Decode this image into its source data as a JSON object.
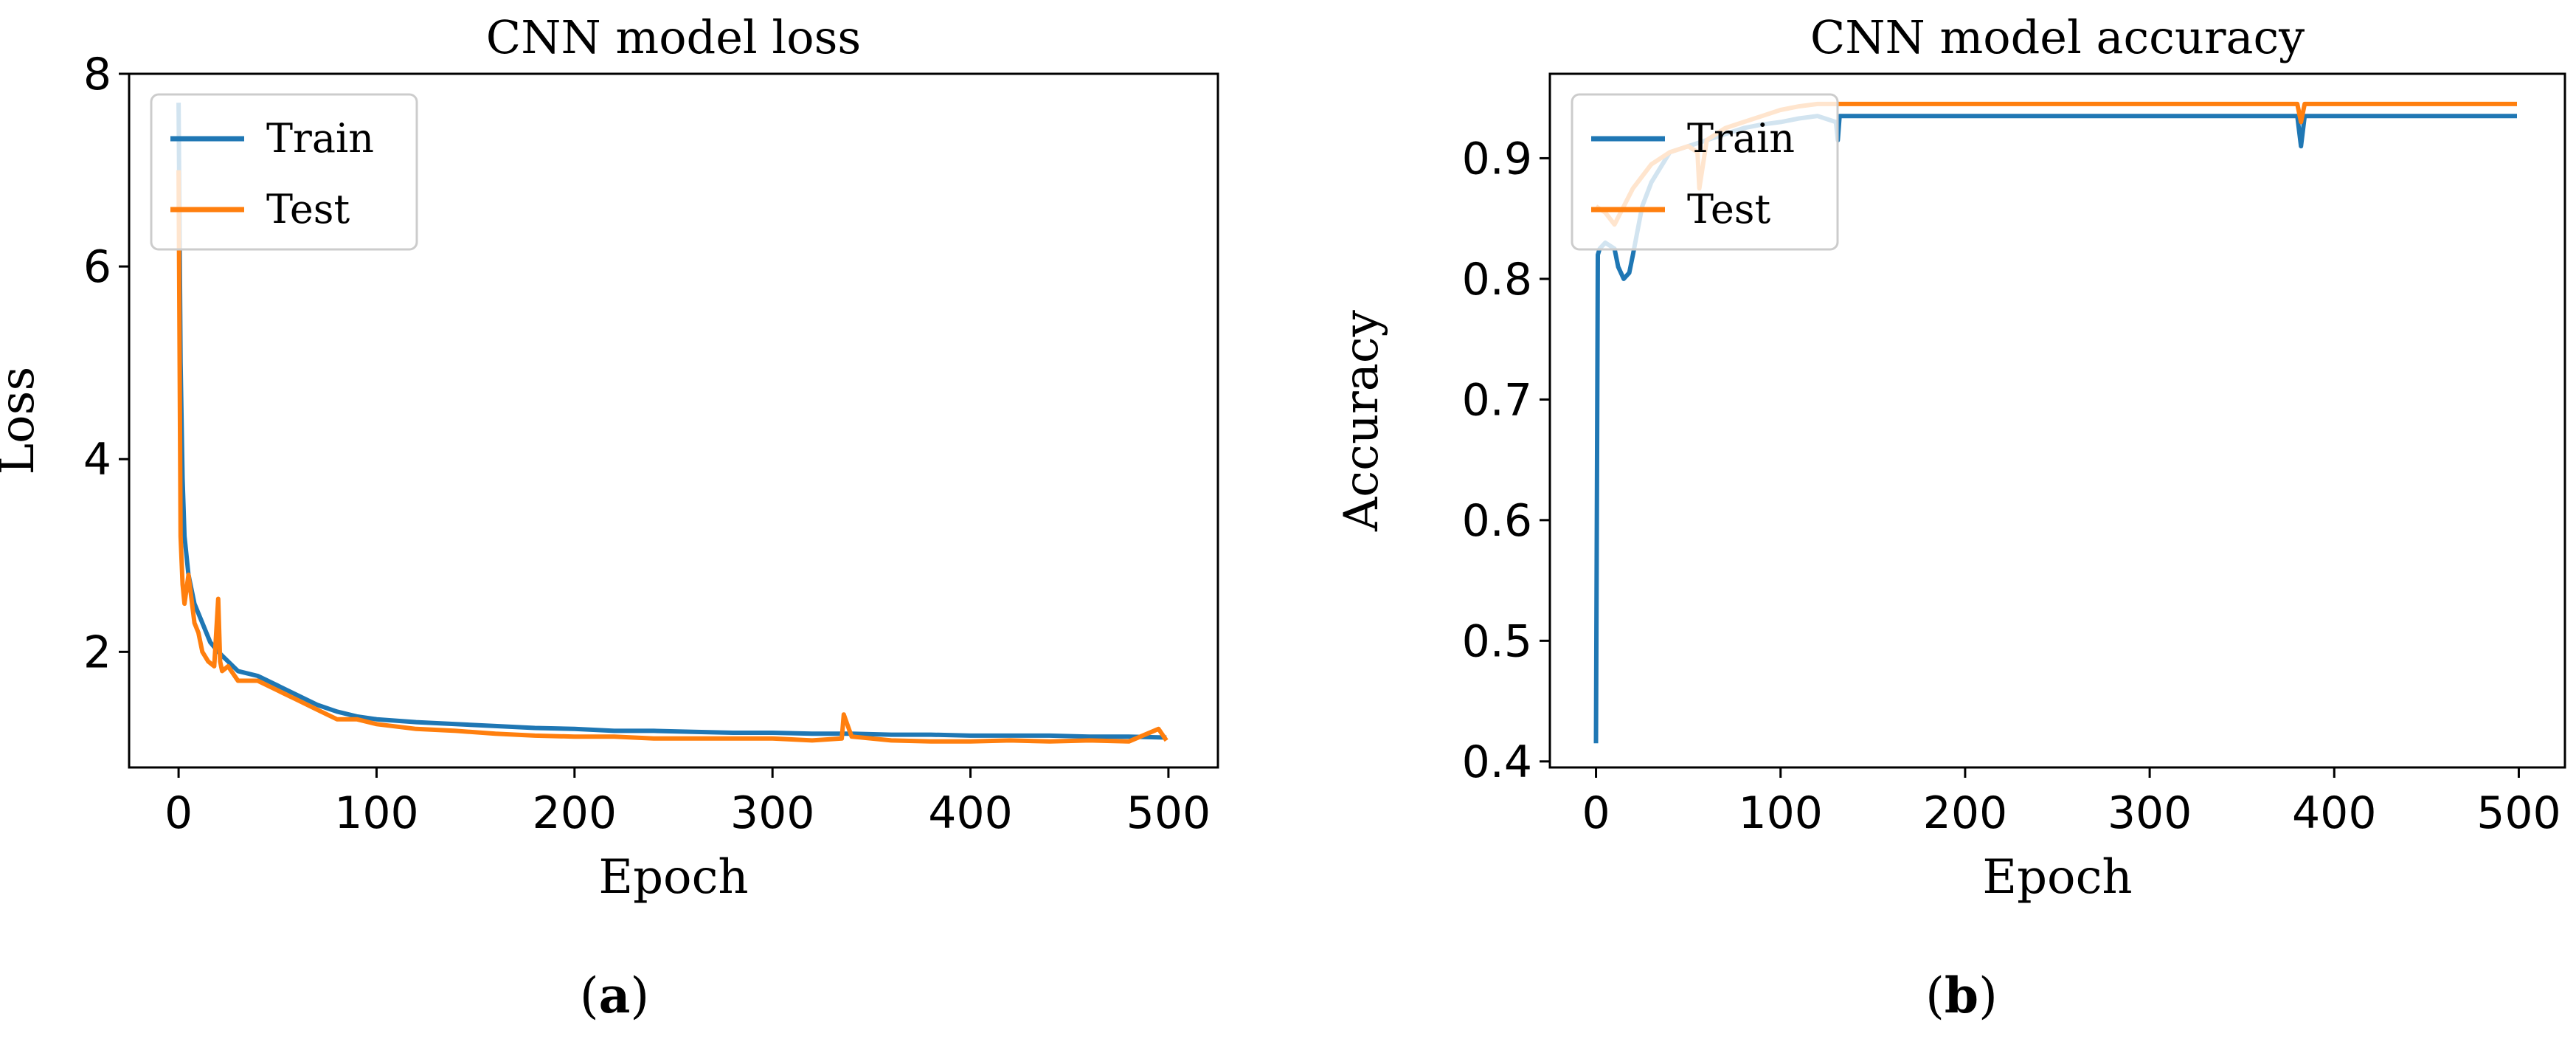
{
  "chart_data": [
    {
      "type": "line",
      "title": "CNN model loss",
      "xlabel": "Epoch",
      "ylabel": "Loss",
      "xlim": [
        -25,
        525
      ],
      "ylim": [
        0.8,
        8.0
      ],
      "xticks": [
        0,
        100,
        200,
        300,
        400,
        500
      ],
      "yticks": [
        2,
        4,
        6,
        8
      ],
      "legend_position": "upper-left",
      "caption_open": "(",
      "caption_letter": "a",
      "caption_close": ")",
      "series": [
        {
          "name": "Train",
          "color": "#1f77b4",
          "x": [
            0,
            1,
            2,
            3,
            5,
            8,
            12,
            16,
            20,
            25,
            30,
            40,
            50,
            60,
            70,
            80,
            90,
            100,
            120,
            140,
            160,
            180,
            200,
            220,
            240,
            260,
            280,
            300,
            320,
            340,
            360,
            380,
            400,
            420,
            440,
            460,
            480,
            499
          ],
          "y": [
            7.7,
            5.0,
            3.8,
            3.2,
            2.8,
            2.5,
            2.3,
            2.1,
            2.0,
            1.9,
            1.8,
            1.75,
            1.65,
            1.55,
            1.45,
            1.38,
            1.33,
            1.3,
            1.27,
            1.25,
            1.23,
            1.21,
            1.2,
            1.18,
            1.18,
            1.17,
            1.16,
            1.16,
            1.15,
            1.15,
            1.14,
            1.14,
            1.13,
            1.13,
            1.13,
            1.12,
            1.12,
            1.11
          ]
        },
        {
          "name": "Test",
          "color": "#ff7f0e",
          "x": [
            0,
            1,
            2,
            3,
            5,
            8,
            10,
            12,
            15,
            18,
            20,
            21,
            22,
            25,
            30,
            40,
            50,
            60,
            70,
            80,
            90,
            100,
            120,
            140,
            160,
            180,
            200,
            220,
            240,
            260,
            280,
            300,
            320,
            335,
            336,
            340,
            360,
            380,
            400,
            420,
            440,
            460,
            480,
            495,
            499
          ],
          "y": [
            7.0,
            3.2,
            2.7,
            2.5,
            2.8,
            2.3,
            2.2,
            2.0,
            1.9,
            1.85,
            2.55,
            1.9,
            1.8,
            1.85,
            1.7,
            1.7,
            1.6,
            1.5,
            1.4,
            1.3,
            1.3,
            1.25,
            1.2,
            1.18,
            1.15,
            1.13,
            1.12,
            1.12,
            1.1,
            1.1,
            1.1,
            1.1,
            1.08,
            1.1,
            1.35,
            1.12,
            1.08,
            1.07,
            1.07,
            1.08,
            1.07,
            1.08,
            1.07,
            1.2,
            1.08
          ]
        }
      ]
    },
    {
      "type": "line",
      "title": "CNN model accuracy",
      "xlabel": "Epoch",
      "ylabel": "Accuracy",
      "xlim": [
        -25,
        525
      ],
      "ylim": [
        0.395,
        0.97
      ],
      "xticks": [
        0,
        100,
        200,
        300,
        400,
        500
      ],
      "yticks": [
        0.4,
        0.5,
        0.6,
        0.7,
        0.8,
        0.9
      ],
      "legend_position": "upper-left",
      "caption_open": "(",
      "caption_letter": "b",
      "caption_close": ")",
      "series": [
        {
          "name": "Train",
          "color": "#1f77b4",
          "x": [
            0,
            1,
            2,
            5,
            10,
            12,
            15,
            18,
            20,
            25,
            30,
            40,
            50,
            60,
            70,
            80,
            90,
            100,
            110,
            120,
            130,
            131,
            132,
            140,
            160,
            200,
            250,
            300,
            350,
            380,
            382,
            384,
            400,
            420,
            440,
            460,
            480,
            499
          ],
          "y": [
            0.415,
            0.82,
            0.825,
            0.83,
            0.825,
            0.81,
            0.8,
            0.805,
            0.82,
            0.86,
            0.88,
            0.905,
            0.91,
            0.915,
            0.92,
            0.925,
            0.928,
            0.93,
            0.933,
            0.935,
            0.93,
            0.915,
            0.935,
            0.935,
            0.935,
            0.935,
            0.935,
            0.935,
            0.935,
            0.935,
            0.91,
            0.935,
            0.935,
            0.935,
            0.935,
            0.935,
            0.935,
            0.935
          ]
        },
        {
          "name": "Test",
          "color": "#ff7f0e",
          "x": [
            0,
            5,
            10,
            15,
            20,
            25,
            30,
            40,
            50,
            55,
            56,
            60,
            70,
            80,
            90,
            100,
            110,
            120,
            130,
            140,
            200,
            250,
            300,
            350,
            380,
            382,
            384,
            400,
            450,
            499
          ],
          "y": [
            0.86,
            0.855,
            0.845,
            0.86,
            0.875,
            0.885,
            0.895,
            0.905,
            0.91,
            0.905,
            0.875,
            0.915,
            0.925,
            0.93,
            0.935,
            0.94,
            0.943,
            0.945,
            0.945,
            0.945,
            0.945,
            0.945,
            0.945,
            0.945,
            0.945,
            0.93,
            0.945,
            0.945,
            0.945,
            0.945
          ]
        }
      ]
    }
  ]
}
